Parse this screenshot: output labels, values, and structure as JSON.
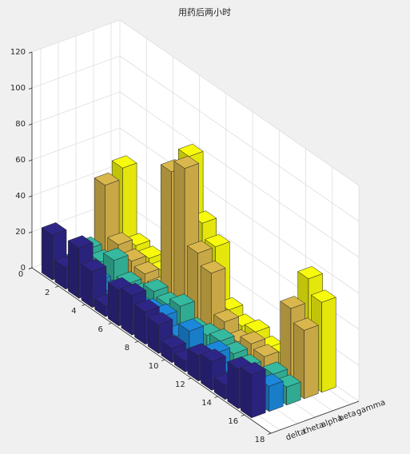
{
  "chart_data": {
    "type": "bar3d",
    "title": "用药后两小时",
    "categories": [
      1,
      2,
      3,
      4,
      5,
      6,
      7,
      8,
      9,
      10,
      11,
      12,
      13,
      14,
      15,
      16
    ],
    "series": [
      {
        "name": "delta",
        "color": "#2e2687",
        "values": [
          25,
          12,
          28,
          20,
          6,
          20,
          22,
          18,
          16,
          8,
          6,
          14,
          16,
          8,
          22,
          24
        ]
      },
      {
        "name": "theta",
        "color": "#1b88dc",
        "values": [
          5,
          4,
          6,
          5,
          3,
          8,
          10,
          12,
          6,
          14,
          4,
          12,
          6,
          8,
          10,
          14
        ]
      },
      {
        "name": "alpha",
        "color": "#35b99f",
        "values": [
          10,
          8,
          14,
          6,
          5,
          12,
          10,
          14,
          6,
          8,
          10,
          8,
          6,
          4,
          12,
          10
        ]
      },
      {
        "name": "beta",
        "color": "#d9b74c",
        "values": [
          42,
          14,
          10,
          8,
          5,
          75,
          82,
          40,
          34,
          12,
          6,
          10,
          8,
          2,
          45,
          38
        ]
      },
      {
        "name": "gamma",
        "color": "#f8fa0d",
        "values": [
          48,
          10,
          8,
          6,
          4,
          80,
          48,
          40,
          10,
          6,
          8,
          4,
          6,
          2,
          58,
          50
        ]
      }
    ],
    "ylim": [
      0,
      18
    ],
    "yticks": [
      0,
      2,
      4,
      6,
      8,
      10,
      12,
      14,
      16,
      18
    ],
    "zlim": [
      0,
      120
    ],
    "zticks": [
      0,
      20,
      40,
      60,
      80,
      100,
      120
    ],
    "grid": true
  }
}
